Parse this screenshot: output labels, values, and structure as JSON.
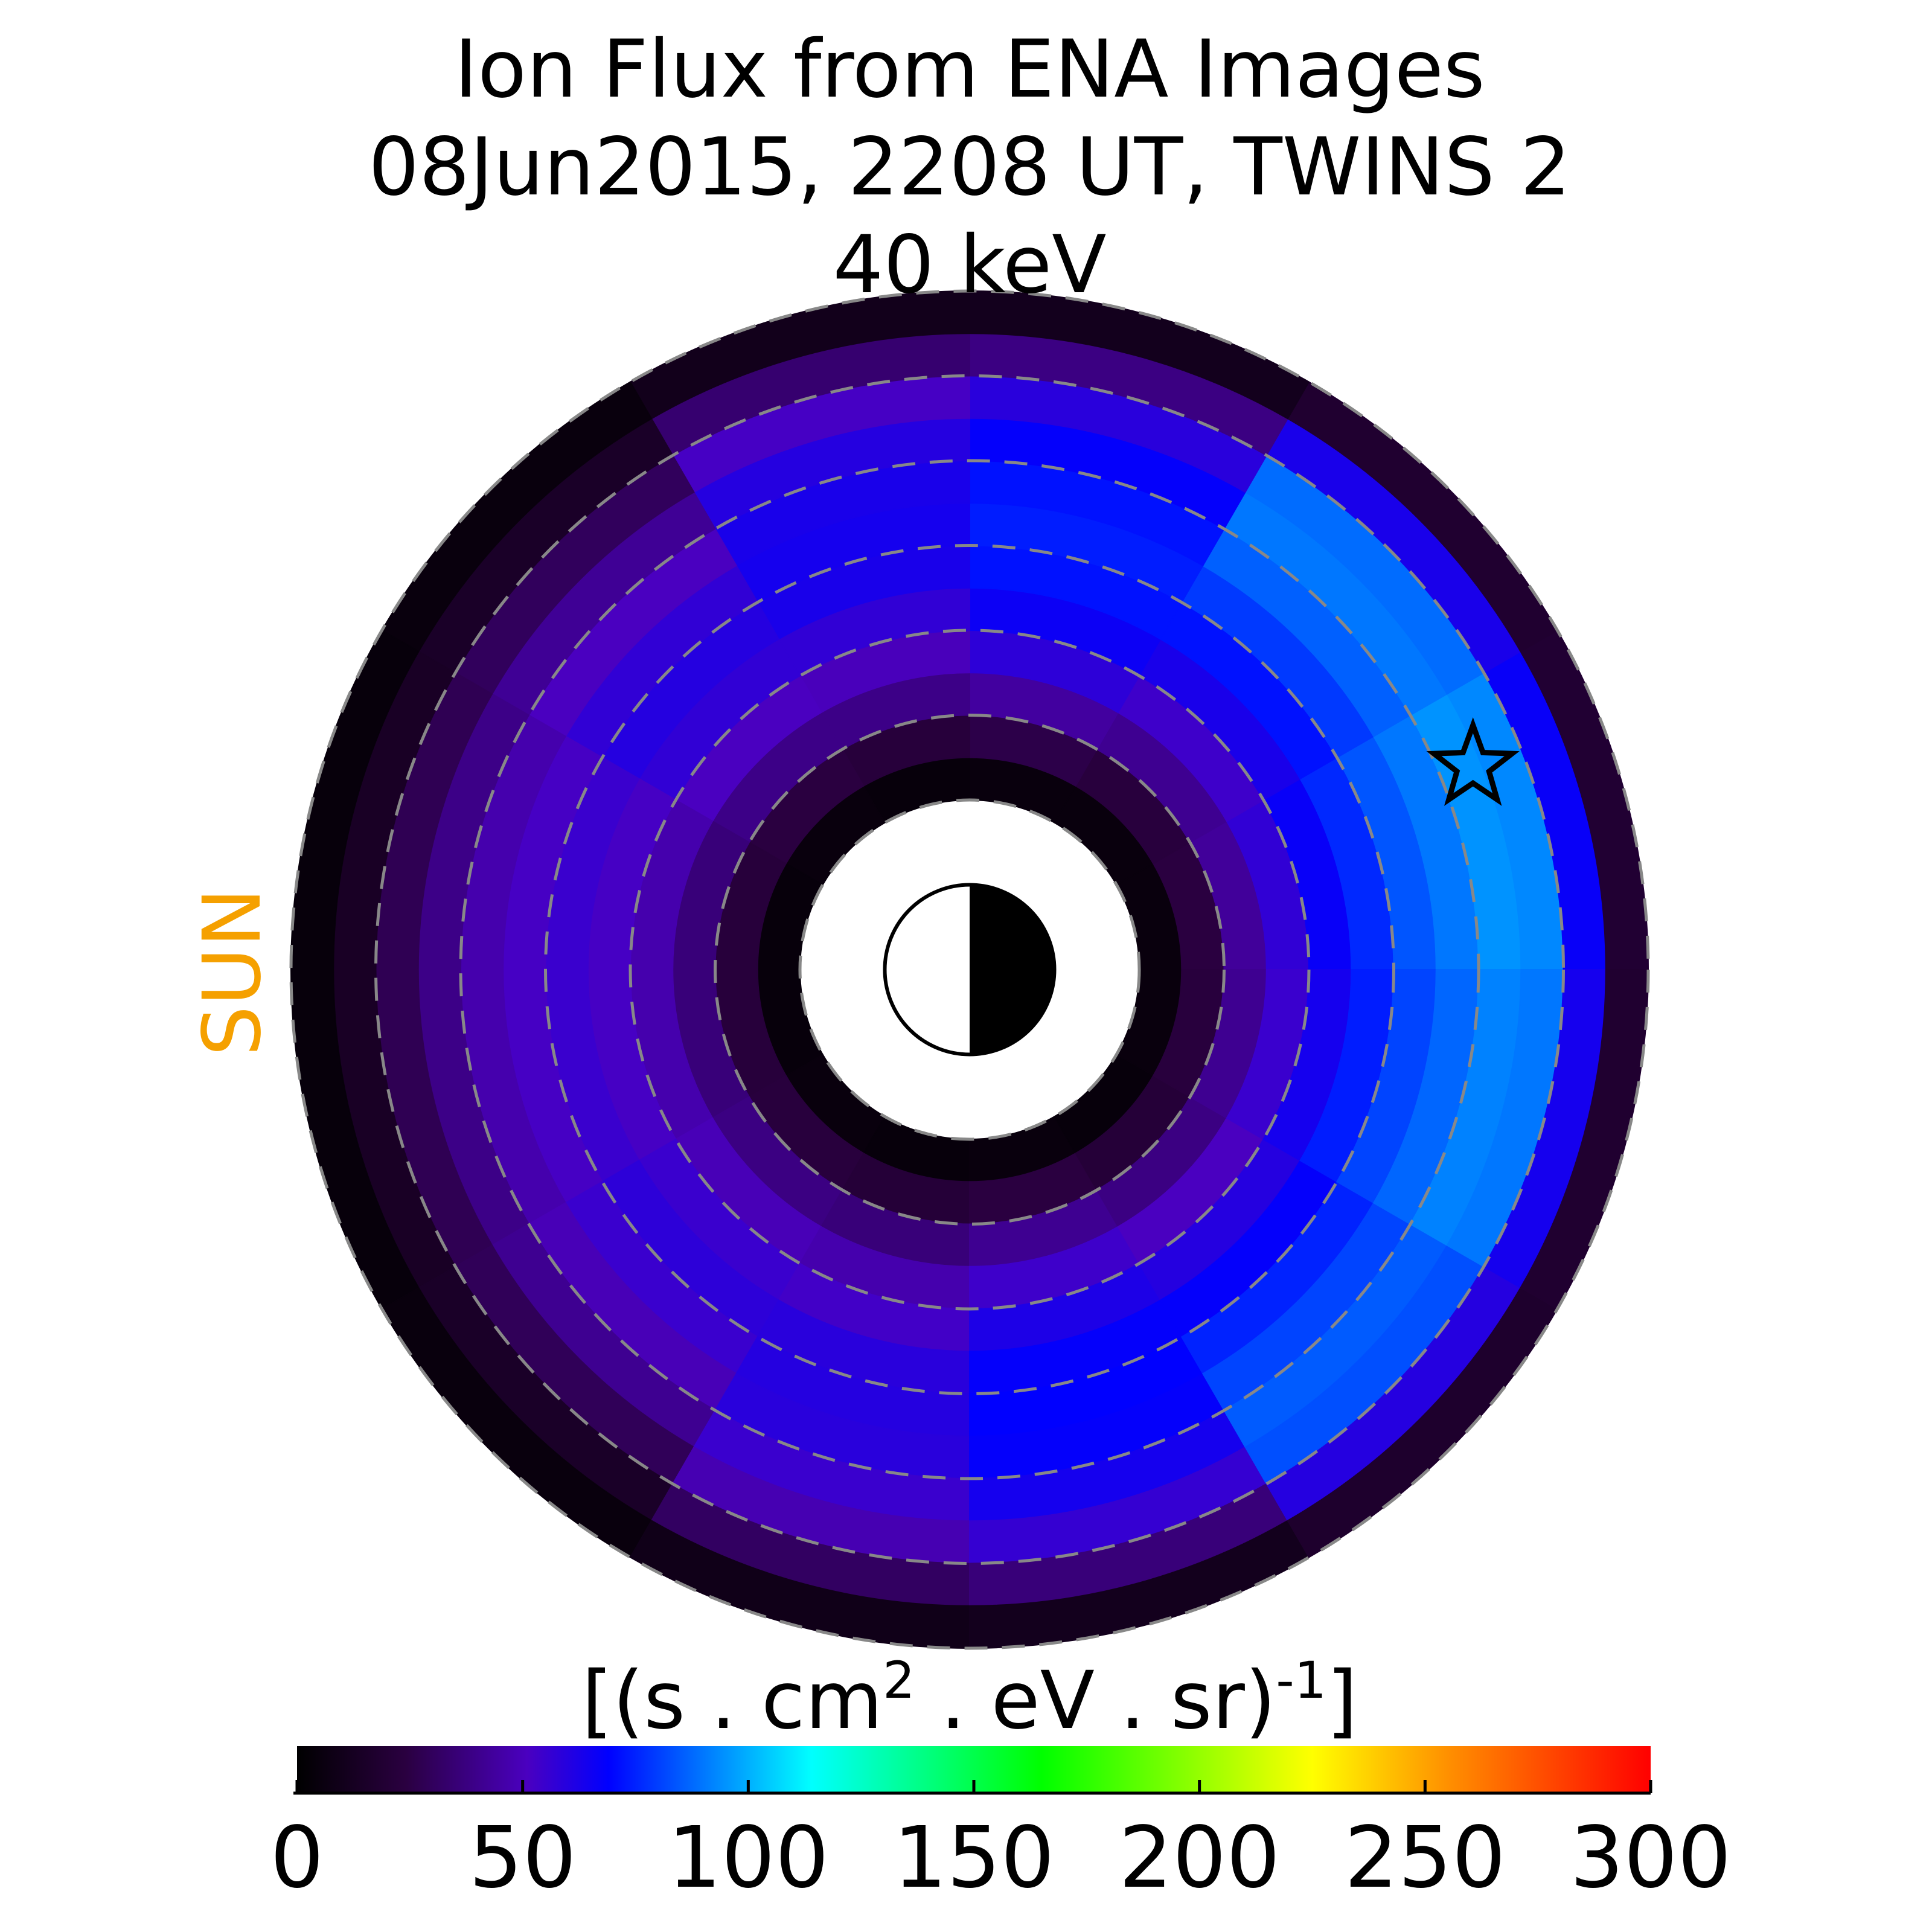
{
  "chart_data": {
    "type": "polar-heatmap",
    "title": [
      "Ion Flux from  ENA Images",
      "08Jun2015, 2208 UT,  TWINS 2",
      "40 keV"
    ],
    "annotation": "SUN",
    "colorbar_label": [
      "[(s . cm",
      "2",
      " . eV . sr)",
      "-1",
      "]"
    ],
    "clim": [
      0,
      300
    ],
    "cticks": [
      0,
      50,
      100,
      150,
      200,
      250,
      300
    ],
    "rlim": [
      0,
      8
    ],
    "rgrid": [
      2,
      3,
      4,
      5,
      6,
      7,
      8
    ],
    "r_edges": [
      2,
      2.5,
      3,
      3.5,
      4,
      4.5,
      5,
      5.5,
      6,
      6.5,
      7,
      7.5,
      8
    ],
    "theta_edges": [
      0,
      30,
      60,
      90,
      120,
      150,
      180,
      210,
      240,
      270,
      300,
      330,
      360
    ],
    "values": [
      [
        5,
        24,
        43,
        57,
        67,
        76,
        84,
        90,
        95,
        93,
        67,
        19
      ],
      [
        5,
        23,
        41,
        54,
        63,
        72,
        79,
        86,
        90,
        88,
        63,
        18
      ],
      [
        5,
        26,
        44,
        58,
        66,
        72,
        74,
        72,
        68,
        59,
        38,
        11
      ],
      [
        4,
        22,
        39,
        50,
        57,
        63,
        64,
        63,
        60,
        52,
        34,
        10
      ],
      [
        5,
        24,
        39,
        51,
        57,
        60,
        57,
        51,
        42,
        30,
        15,
        5
      ],
      [
        4,
        22,
        36,
        47,
        52,
        55,
        52,
        47,
        39,
        28,
        14,
        4
      ],
      [
        4,
        22,
        36,
        47,
        52,
        55,
        52,
        47,
        39,
        28,
        14,
        4
      ],
      [
        5,
        23,
        38,
        49,
        55,
        58,
        55,
        49,
        41,
        29,
        15,
        5
      ],
      [
        4,
        21,
        36,
        47,
        53,
        59,
        60,
        59,
        55,
        48,
        31,
        9
      ],
      [
        5,
        24,
        41,
        54,
        62,
        68,
        69,
        68,
        64,
        56,
        36,
        11
      ],
      [
        4,
        21,
        38,
        51,
        60,
        68,
        75,
        81,
        85,
        83,
        60,
        17
      ],
      [
        5,
        23,
        41,
        55,
        64,
        74,
        81,
        87,
        92,
        90,
        64,
        18
      ]
    ],
    "star": {
      "r": 6.4,
      "theta": 22
    }
  }
}
